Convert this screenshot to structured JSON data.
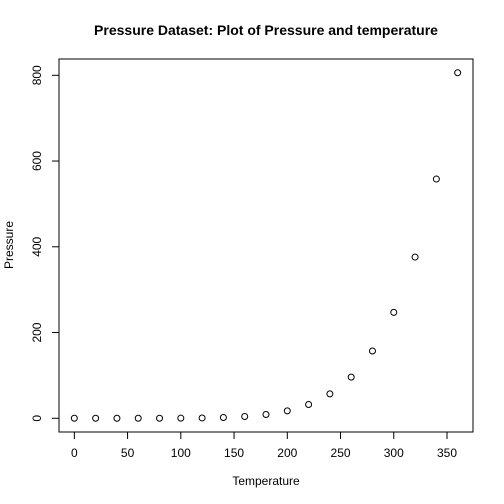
{
  "chart_data": {
    "type": "scatter",
    "title": "Pressure Dataset: Plot of Pressure and temperature",
    "xlabel": "Temperature",
    "ylabel": "Pressure",
    "xlim": [
      -14.4,
      374.4
    ],
    "ylim": [
      -32.0,
      838.0
    ],
    "xticks": [
      0,
      50,
      100,
      150,
      200,
      250,
      300,
      350
    ],
    "yticks": [
      0,
      200,
      400,
      600,
      800
    ],
    "grid": false,
    "legend": "none",
    "x": [
      0,
      20,
      40,
      60,
      80,
      100,
      120,
      140,
      160,
      180,
      200,
      220,
      240,
      260,
      280,
      300,
      320,
      340,
      360
    ],
    "y": [
      0.0002,
      0.0012,
      0.006,
      0.03,
      0.09,
      0.27,
      0.75,
      1.85,
      4.2,
      8.8,
      17.3,
      32.1,
      57,
      96,
      157,
      247,
      376,
      558,
      806
    ],
    "marker": "open-circle",
    "color": "#000000"
  }
}
